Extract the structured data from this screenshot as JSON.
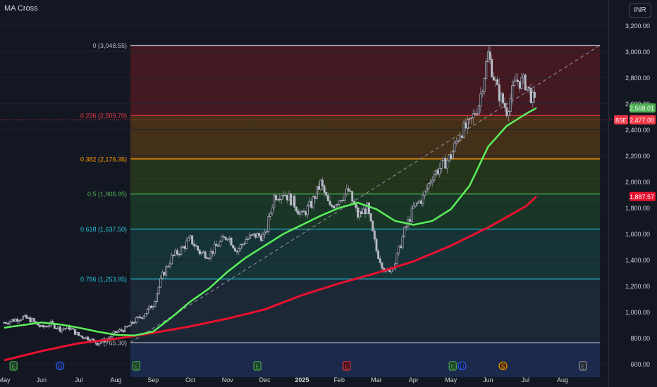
{
  "title": "MA Cross",
  "currency": "INR",
  "colors": {
    "background": "#131722",
    "ma_fast": "#5cf05c",
    "ma_slow": "#e8112f",
    "candle_up": "#b8bcc6",
    "candle_down": "#b8bcc6",
    "price_label": "#f23645"
  },
  "chart_data": {
    "type": "candlestick",
    "ylim": [
      500,
      3300
    ],
    "y_ticks": [
      "3,200.00",
      "3,000.00",
      "2,800.00",
      "2,600.00",
      "2,400.00",
      "2,200.00",
      "2,000.00",
      "1,800.00",
      "1,600.00",
      "1,400.00",
      "1,200.00",
      "1,000.00",
      "800.00",
      "600.00"
    ],
    "y_tick_values": [
      3200,
      3000,
      2800,
      2600,
      2400,
      2200,
      2000,
      1800,
      1600,
      1400,
      1200,
      1000,
      800,
      600
    ],
    "x_ticks": [
      "May",
      "Jun",
      "Jul",
      "Aug",
      "Sep",
      "Oct",
      "Nov",
      "Dec",
      "2025",
      "Feb",
      "Mar",
      "Apr",
      "May",
      "Jun",
      "Jul",
      "Aug"
    ],
    "fib_levels": [
      {
        "label": "0 (3,048.55)",
        "value": 3048.55,
        "color": "#b2b5be"
      },
      {
        "label": "0.236 (2,509.70)",
        "value": 2509.7,
        "color": "#f23645"
      },
      {
        "label": "0.382 (2,176.35)",
        "value": 2176.35,
        "color": "#ff9800"
      },
      {
        "label": "0.5 (1,906.95)",
        "value": 1906.95,
        "color": "#4caf50"
      },
      {
        "label": "0.618 (1,637.50)",
        "value": 1637.5,
        "color": "#26c6da"
      },
      {
        "label": "0.786 (1,253.95)",
        "value": 1253.95,
        "color": "#26c6da"
      },
      {
        "label": "(765.30)",
        "value": 765.3,
        "color": "#b2b5be"
      }
    ],
    "price_labels": [
      {
        "text": "2,568.01",
        "value": 2568.01,
        "color": "#4caf50"
      },
      {
        "text": "2,477.00",
        "value": 2477.0,
        "color": "#f23645",
        "tag": "BSE"
      },
      {
        "text": "1,887.57",
        "value": 1887.57,
        "color": "#e8112f"
      }
    ],
    "events": [
      {
        "label": "E",
        "month": "May",
        "offset": 0.15
      },
      {
        "label": "D",
        "month": "Jun",
        "offset": 0.45
      },
      {
        "label": "E",
        "month": "Aug",
        "offset": 0.0
      },
      {
        "label": "E",
        "month": "Nov",
        "offset": 0.35
      },
      {
        "label": "E",
        "month": "Feb",
        "offset": 0.2
      },
      {
        "label": "E",
        "month": "May",
        "offset": 0.1
      },
      {
        "label": "D",
        "month": "May",
        "offset": 0.35
      },
      {
        "label": "S",
        "month": "Jun",
        "offset": 0.55
      },
      {
        "label": "E",
        "month": "Aug",
        "offset": 0.1
      }
    ],
    "closes": [
      {
        "m": 0.0,
        "c": 920
      },
      {
        "m": 0.25,
        "c": 940
      },
      {
        "m": 0.5,
        "c": 960
      },
      {
        "m": 0.75,
        "c": 935
      },
      {
        "m": 1.0,
        "c": 880
      },
      {
        "m": 1.25,
        "c": 910
      },
      {
        "m": 1.5,
        "c": 870
      },
      {
        "m": 1.75,
        "c": 880
      },
      {
        "m": 2.0,
        "c": 820
      },
      {
        "m": 2.25,
        "c": 800
      },
      {
        "m": 2.5,
        "c": 760
      },
      {
        "m": 2.75,
        "c": 790
      },
      {
        "m": 3.0,
        "c": 845
      },
      {
        "m": 3.25,
        "c": 870
      },
      {
        "m": 3.5,
        "c": 930
      },
      {
        "m": 3.75,
        "c": 980
      },
      {
        "m": 4.0,
        "c": 1060
      },
      {
        "m": 4.25,
        "c": 1280
      },
      {
        "m": 4.5,
        "c": 1420
      },
      {
        "m": 4.75,
        "c": 1480
      },
      {
        "m": 5.0,
        "c": 1560
      },
      {
        "m": 5.25,
        "c": 1460
      },
      {
        "m": 5.5,
        "c": 1440
      },
      {
        "m": 5.75,
        "c": 1520
      },
      {
        "m": 6.0,
        "c": 1590
      },
      {
        "m": 6.25,
        "c": 1470
      },
      {
        "m": 6.5,
        "c": 1560
      },
      {
        "m": 6.75,
        "c": 1590
      },
      {
        "m": 7.0,
        "c": 1580
      },
      {
        "m": 7.25,
        "c": 1890
      },
      {
        "m": 7.5,
        "c": 1920
      },
      {
        "m": 7.75,
        "c": 1850
      },
      {
        "m": 8.0,
        "c": 1740
      },
      {
        "m": 8.25,
        "c": 1830
      },
      {
        "m": 8.5,
        "c": 1990
      },
      {
        "m": 8.75,
        "c": 1800
      },
      {
        "m": 9.0,
        "c": 1870
      },
      {
        "m": 9.25,
        "c": 1930
      },
      {
        "m": 9.5,
        "c": 1740
      },
      {
        "m": 9.75,
        "c": 1800
      },
      {
        "m": 10.0,
        "c": 1470
      },
      {
        "m": 10.25,
        "c": 1300
      },
      {
        "m": 10.5,
        "c": 1380
      },
      {
        "m": 10.75,
        "c": 1620
      },
      {
        "m": 11.0,
        "c": 1800
      },
      {
        "m": 11.25,
        "c": 1880
      },
      {
        "m": 11.5,
        "c": 2050
      },
      {
        "m": 11.75,
        "c": 2120
      },
      {
        "m": 12.0,
        "c": 2200
      },
      {
        "m": 12.25,
        "c": 2380
      },
      {
        "m": 12.5,
        "c": 2440
      },
      {
        "m": 12.75,
        "c": 2600
      },
      {
        "m": 13.0,
        "c": 2980
      },
      {
        "m": 13.25,
        "c": 2700
      },
      {
        "m": 13.5,
        "c": 2550
      },
      {
        "m": 13.75,
        "c": 2780
      },
      {
        "m": 14.0,
        "c": 2760
      },
      {
        "m": 14.25,
        "c": 2600
      },
      {
        "m": 14.3,
        "c": 2477
      }
    ],
    "ma_fast": [
      {
        "m": 0.0,
        "v": 880
      },
      {
        "m": 0.5,
        "v": 900
      },
      {
        "m": 1.0,
        "v": 920
      },
      {
        "m": 1.5,
        "v": 905
      },
      {
        "m": 2.0,
        "v": 880
      },
      {
        "m": 2.5,
        "v": 850
      },
      {
        "m": 3.0,
        "v": 825
      },
      {
        "m": 3.5,
        "v": 820
      },
      {
        "m": 4.0,
        "v": 850
      },
      {
        "m": 4.5,
        "v": 960
      },
      {
        "m": 5.0,
        "v": 1080
      },
      {
        "m": 5.5,
        "v": 1180
      },
      {
        "m": 6.0,
        "v": 1310
      },
      {
        "m": 6.5,
        "v": 1420
      },
      {
        "m": 7.0,
        "v": 1510
      },
      {
        "m": 7.5,
        "v": 1600
      },
      {
        "m": 8.0,
        "v": 1670
      },
      {
        "m": 8.5,
        "v": 1740
      },
      {
        "m": 9.0,
        "v": 1800
      },
      {
        "m": 9.5,
        "v": 1840
      },
      {
        "m": 10.0,
        "v": 1790
      },
      {
        "m": 10.5,
        "v": 1700
      },
      {
        "m": 11.0,
        "v": 1670
      },
      {
        "m": 11.5,
        "v": 1700
      },
      {
        "m": 12.0,
        "v": 1790
      },
      {
        "m": 12.5,
        "v": 1970
      },
      {
        "m": 13.0,
        "v": 2270
      },
      {
        "m": 13.5,
        "v": 2430
      },
      {
        "m": 14.0,
        "v": 2520
      },
      {
        "m": 14.3,
        "v": 2568.01
      }
    ],
    "ma_slow": [
      {
        "m": 0.0,
        "v": 630
      },
      {
        "m": 1.0,
        "v": 700
      },
      {
        "m": 2.0,
        "v": 760
      },
      {
        "m": 3.0,
        "v": 795
      },
      {
        "m": 4.0,
        "v": 840
      },
      {
        "m": 5.0,
        "v": 890
      },
      {
        "m": 6.0,
        "v": 950
      },
      {
        "m": 7.0,
        "v": 1020
      },
      {
        "m": 8.0,
        "v": 1130
      },
      {
        "m": 9.0,
        "v": 1220
      },
      {
        "m": 10.0,
        "v": 1300
      },
      {
        "m": 11.0,
        "v": 1390
      },
      {
        "m": 12.0,
        "v": 1510
      },
      {
        "m": 13.0,
        "v": 1650
      },
      {
        "m": 14.0,
        "v": 1810
      },
      {
        "m": 14.3,
        "v": 1887.57
      }
    ]
  }
}
